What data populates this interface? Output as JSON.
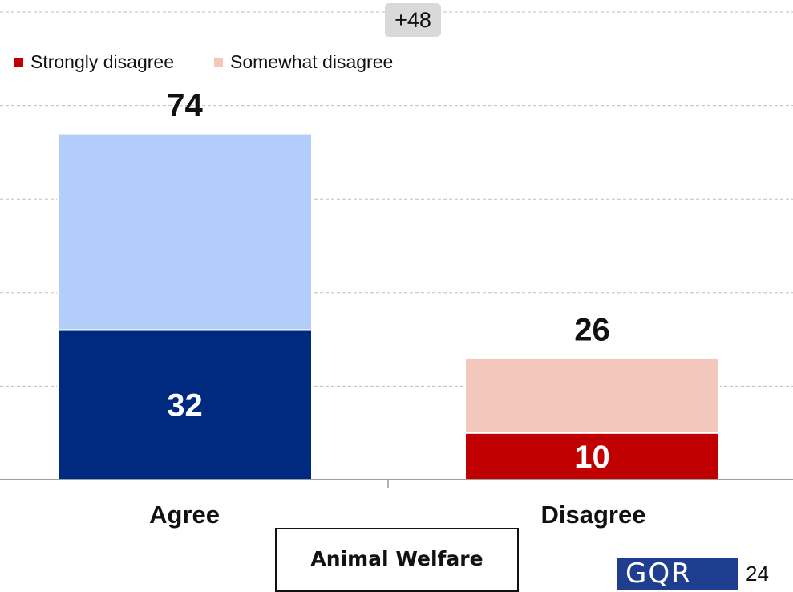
{
  "chart_data": {
    "type": "bar",
    "stacked": true,
    "categories": [
      "Agree",
      "Disagree"
    ],
    "totals": [
      74,
      26
    ],
    "segments": [
      {
        "category": "Agree",
        "lower": 32,
        "upper": 42,
        "lower_color": "#002a7f",
        "upper_color": "#b3cdfb"
      },
      {
        "category": "Disagree",
        "lower": 10,
        "upper": 16,
        "lower_color": "#c00000",
        "upper_color": "#f3c7bc"
      }
    ],
    "data_labels": [
      "74",
      "32",
      "26",
      "10"
    ],
    "ylim": [
      0,
      100
    ],
    "grid": true,
    "legend": {
      "placement": "top-left",
      "entries": [
        {
          "name": "Strongly disagree",
          "color": "#c00000"
        },
        {
          "name": "Somewhat disagree",
          "color": "#f3c7bc"
        }
      ]
    },
    "difference_label": "+48",
    "subject_label": "Animal Welfare"
  },
  "footer": {
    "logo_text": "GQR",
    "page_number": "24"
  }
}
